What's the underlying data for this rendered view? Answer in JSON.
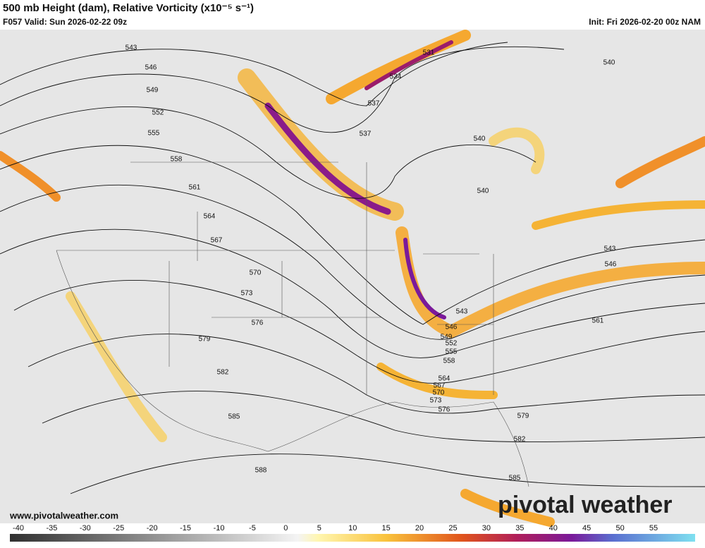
{
  "header": {
    "title": "500 mb Height (dam), Relative Vorticity (x10⁻⁵ s⁻¹)",
    "valid": "F057 Valid: Sun 2026-02-22 09z",
    "init": "Init: Fri 2026-02-20 00z NAM"
  },
  "contour_labels": [
    543,
    546,
    549,
    552,
    555,
    558,
    561,
    564,
    567,
    570,
    573,
    576,
    579,
    582,
    585,
    588,
    531,
    534,
    537,
    537,
    540,
    540,
    540,
    543,
    546,
    543,
    546,
    549,
    552,
    555,
    558,
    561,
    564,
    567,
    570,
    573,
    576,
    579,
    582,
    585
  ],
  "colorbar": {
    "ticks": [
      -40,
      -35,
      -30,
      -25,
      -20,
      -15,
      -10,
      -5,
      0,
      5,
      10,
      15,
      20,
      25,
      30,
      35,
      40,
      45,
      50,
      55
    ]
  },
  "footer": {
    "url": "www.pivotalweather.com",
    "logo": "pivotal weather"
  }
}
